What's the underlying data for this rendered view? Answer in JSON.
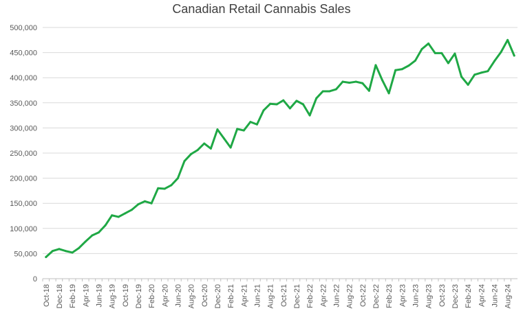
{
  "chart_data": {
    "type": "line",
    "title": "Canadian Retail Cannabis Sales",
    "xlabel": "",
    "ylabel": "",
    "ylim": [
      0,
      500000
    ],
    "grid": true,
    "legend": "none",
    "colors": {
      "line": "#1fa845",
      "grid": "#d9d9d9",
      "axis": "#bfbfbf"
    },
    "y_ticks": [
      "0",
      "50,000",
      "100,000",
      "150,000",
      "200,000",
      "250,000",
      "300,000",
      "350,000",
      "400,000",
      "450,000",
      "500,000"
    ],
    "y_tick_values": [
      0,
      50000,
      100000,
      150000,
      200000,
      250000,
      300000,
      350000,
      400000,
      450000,
      500000
    ],
    "x": [
      "Oct-18",
      "Nov-18",
      "Dec-18",
      "Jan-19",
      "Feb-19",
      "Mar-19",
      "Apr-19",
      "May-19",
      "Jun-19",
      "Jul-19",
      "Aug-19",
      "Sep-19",
      "Oct-19",
      "Nov-19",
      "Dec-19",
      "Jan-20",
      "Feb-20",
      "Mar-20",
      "Apr-20",
      "May-20",
      "Jun-20",
      "Jul-20",
      "Aug-20",
      "Sep-20",
      "Oct-20",
      "Nov-20",
      "Dec-20",
      "Jan-21",
      "Feb-21",
      "Mar-21",
      "Apr-21",
      "May-21",
      "Jun-21",
      "Jul-21",
      "Aug-21",
      "Sep-21",
      "Oct-21",
      "Nov-21",
      "Dec-21",
      "Jan-22",
      "Feb-22",
      "Mar-22",
      "Apr-22",
      "May-22",
      "Jun-22",
      "Jul-22",
      "Aug-22",
      "Sep-22",
      "Oct-22",
      "Nov-22",
      "Dec-22",
      "Jan-23",
      "Feb-23",
      "Mar-23",
      "Apr-23",
      "May-23",
      "Jun-23",
      "Jul-23",
      "Aug-23",
      "Sep-23",
      "Oct-23",
      "Nov-23",
      "Dec-23",
      "Jan-24",
      "Feb-24",
      "Mar-24",
      "Apr-24",
      "May-24",
      "Jun-24",
      "Jul-24",
      "Aug-24",
      "Sep-24"
    ],
    "x_tick_labels": [
      "Oct-18",
      "Dec-18",
      "Feb-19",
      "Apr-19",
      "Jun-19",
      "Aug-19",
      "Oct-19",
      "Dec-19",
      "Feb-20",
      "Apr-20",
      "Jun-20",
      "Aug-20",
      "Oct-20",
      "Dec-20",
      "Feb-21",
      "Apr-21",
      "Jun-21",
      "Aug-21",
      "Oct-21",
      "Dec-21",
      "Feb-22",
      "Apr-22",
      "Jun-22",
      "Aug-22",
      "Oct-22",
      "Dec-22",
      "Feb-23",
      "Apr-23",
      "Jun-23",
      "Aug-23",
      "Oct-23",
      "Dec-23",
      "Feb-24",
      "Apr-24",
      "Jun-24",
      "Aug-24"
    ],
    "series": [
      {
        "values": [
          43000,
          55000,
          59000,
          55000,
          52000,
          61000,
          74000,
          86000,
          92000,
          106000,
          126000,
          123000,
          130000,
          137000,
          148000,
          154000,
          150000,
          180000,
          179000,
          186000,
          200000,
          234000,
          248000,
          256000,
          269000,
          259000,
          297000,
          279000,
          261000,
          298000,
          295000,
          312000,
          307000,
          335000,
          348000,
          347000,
          355000,
          339000,
          354000,
          347000,
          325000,
          359000,
          373000,
          373000,
          377000,
          392000,
          390000,
          392000,
          389000,
          374000,
          425000,
          395000,
          369000,
          415000,
          417000,
          424000,
          434000,
          457000,
          468000,
          449000,
          449000,
          429000,
          448000,
          402000,
          386000,
          406000,
          410000,
          413000,
          433000,
          451000,
          475000,
          444000
        ]
      }
    ]
  }
}
